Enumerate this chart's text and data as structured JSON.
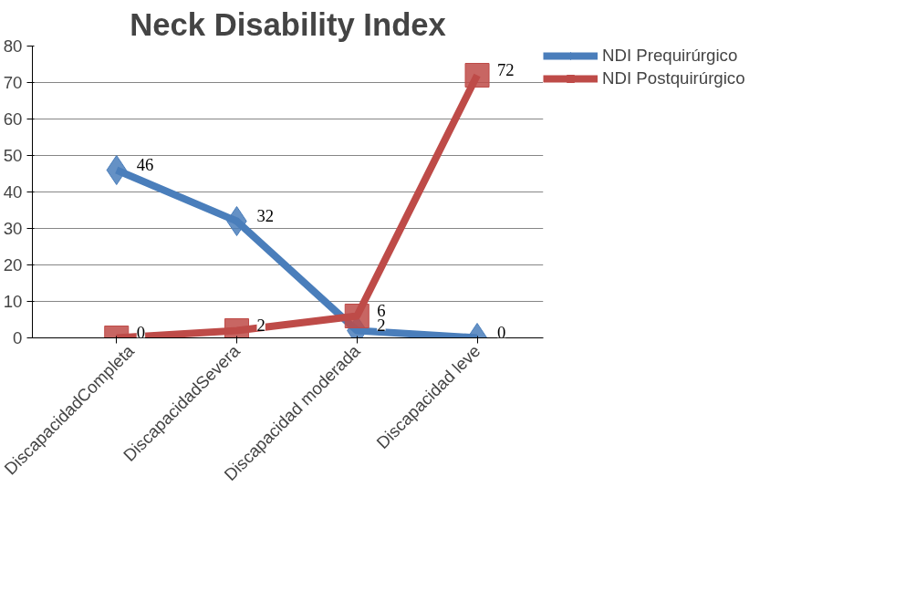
{
  "chart_data": {
    "type": "line",
    "title": "Neck Disability Index",
    "categories": [
      "DiscapacidadCompleta",
      "DiscapacidadSevera",
      "Discapacidad moderada",
      "Discapacidad leve"
    ],
    "series": [
      {
        "name": "NDI Prequirúrgico",
        "color": "#4a7ebb",
        "marker": "diamond",
        "values": [
          46,
          32,
          2,
          0
        ]
      },
      {
        "name": "NDI Postquirúrgico",
        "color": "#be4b48",
        "marker": "square",
        "values": [
          0,
          2,
          6,
          72
        ]
      }
    ],
    "ylim": [
      0,
      80
    ],
    "yticks": [
      0,
      10,
      20,
      30,
      40,
      50,
      60,
      70,
      80
    ],
    "grid": "y",
    "legend": "right",
    "data_labels": true
  }
}
